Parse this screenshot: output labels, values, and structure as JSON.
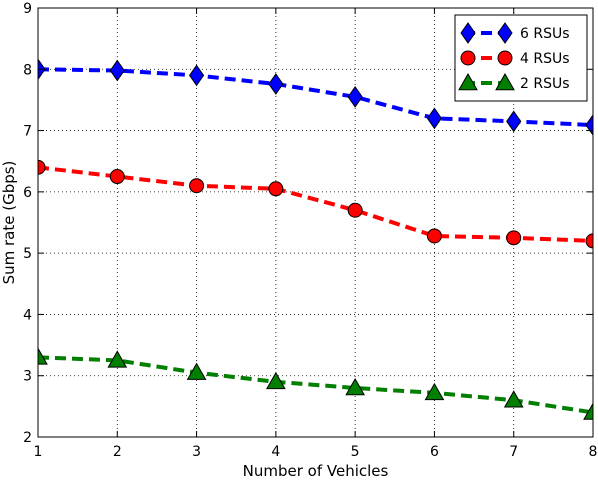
{
  "chart_data": {
    "type": "line",
    "title": "",
    "xlabel": "Number of Vehicles",
    "ylabel": "Sum rate (Gbps)",
    "x": [
      1,
      2,
      3,
      4,
      5,
      6,
      7,
      8
    ],
    "xlim": [
      1,
      8
    ],
    "ylim": [
      2,
      9
    ],
    "xticks": [
      "1",
      "2",
      "3",
      "4",
      "5",
      "6",
      "7",
      "8"
    ],
    "yticks": [
      "2",
      "3",
      "4",
      "5",
      "6",
      "7",
      "8",
      "9"
    ],
    "grid": true,
    "legend_position": "top-right",
    "series": [
      {
        "name": "6 RSUs",
        "color": "#0000ff",
        "marker": "diamond",
        "values": [
          8.0,
          7.98,
          7.9,
          7.76,
          7.55,
          7.2,
          7.15,
          7.09
        ]
      },
      {
        "name": "4 RSUs",
        "color": "#ff0000",
        "marker": "circle",
        "values": [
          6.4,
          6.25,
          6.1,
          6.05,
          5.7,
          5.28,
          5.25,
          5.2
        ]
      },
      {
        "name": "2 RSUs",
        "color": "#007f00",
        "marker": "triangle-up",
        "values": [
          3.3,
          3.25,
          3.05,
          2.9,
          2.8,
          2.72,
          2.6,
          2.4
        ]
      }
    ]
  }
}
